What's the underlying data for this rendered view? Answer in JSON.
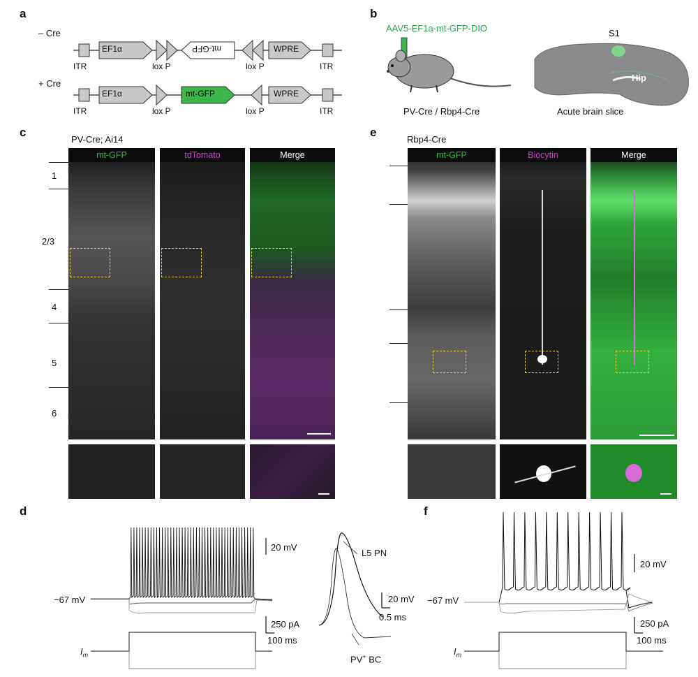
{
  "panels": {
    "a": {
      "label": "a",
      "minus_cre": "– Cre",
      "plus_cre": "+ Cre",
      "itr": "ITR",
      "ef1a": "EF1α",
      "lox": "lox P",
      "mtgfp": "mt-GFP",
      "wpre": "WPRE"
    },
    "b": {
      "label": "b",
      "virus": "AAV5-EF1a-mt-GFP-DIO",
      "mouse_caption": "PV-Cre / Rbp4-Cre",
      "slice_caption": "Acute brain slice",
      "s1": "S1",
      "hip": "Hip"
    },
    "c": {
      "label": "c",
      "title": "PV-Cre; Ai14",
      "channels": [
        "mt-GFP",
        "tdTomato",
        "Merge"
      ],
      "layers": [
        "1",
        "2/3",
        "4",
        "5",
        "6"
      ]
    },
    "d": {
      "label": "d",
      "vrest": "−67 mV",
      "scale_v": "20 mV",
      "scale_i": "250 pA",
      "scale_t": "100 ms",
      "im": "I",
      "im_sub": "m",
      "inset_v": "20 mV",
      "inset_t": "0.5 ms",
      "l5pn": "L5 PN",
      "pvbc": "PV",
      "pvbc_sup": "+",
      "pvbc_tail": " BC"
    },
    "e": {
      "label": "e",
      "title": "Rbp4-Cre",
      "channels": [
        "mt-GFP",
        "Biocytin",
        "Merge"
      ]
    },
    "f": {
      "label": "f",
      "vrest": "−67 mV",
      "scale_v": "20 mV",
      "scale_i": "250 pA",
      "scale_t": "100 ms",
      "im": "I",
      "im_sub": "m"
    }
  },
  "colors": {
    "green": "#2fbf3a",
    "magenta": "#d63bd6",
    "gfp_box": "#3cb54a",
    "virus_text": "#2aa84a"
  }
}
